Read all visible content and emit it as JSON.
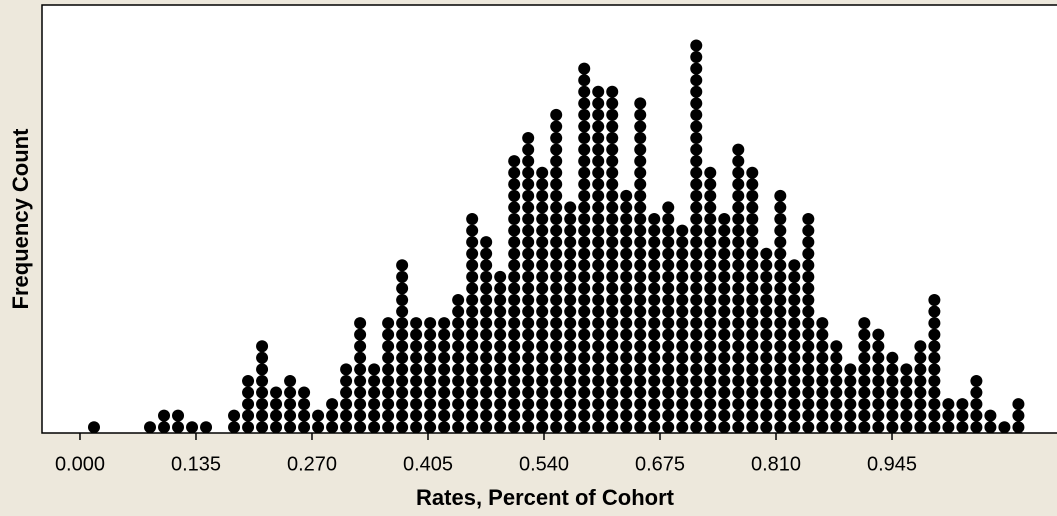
{
  "chart_data": {
    "type": "dotplot",
    "x_label": "Rates, Percent of Cohort",
    "y_label": "Frequency Count",
    "x": [
      0.0163,
      0.0326,
      0.0489,
      0.0652,
      0.0815,
      0.0978,
      0.1141,
      0.1304,
      0.1467,
      0.163,
      0.1793,
      0.1956,
      0.2119,
      0.2282,
      0.2445,
      0.2608,
      0.2771,
      0.2934,
      0.3097,
      0.326,
      0.3423,
      0.3586,
      0.3749,
      0.3912,
      0.4075,
      0.4238,
      0.4401,
      0.4564,
      0.4727,
      0.489,
      0.5053,
      0.5216,
      0.5379,
      0.5542,
      0.5705,
      0.5868,
      0.6031,
      0.6194,
      0.6357,
      0.652,
      0.6683,
      0.6846,
      0.7009,
      0.7172,
      0.7335,
      0.7498,
      0.7661,
      0.7824,
      0.7987,
      0.815,
      0.8313,
      0.8476,
      0.8639,
      0.8802,
      0.8965,
      0.9128,
      0.9291,
      0.9454,
      0.9617,
      0.978,
      0.9943,
      1.0106,
      1.0269,
      1.0432,
      1.0595,
      1.0758,
      1.0921
    ],
    "values": [
      1,
      0,
      0,
      0,
      1,
      2,
      2,
      1,
      1,
      0,
      2,
      5,
      8,
      4,
      5,
      4,
      2,
      3,
      6,
      10,
      6,
      10,
      15,
      10,
      10,
      10,
      12,
      19,
      17,
      14,
      24,
      26,
      23,
      28,
      20,
      32,
      30,
      30,
      21,
      29,
      19,
      20,
      18,
      34,
      23,
      19,
      25,
      23,
      16,
      21,
      15,
      19,
      10,
      8,
      6,
      10,
      9,
      7,
      6,
      8,
      12,
      3,
      3,
      5,
      2,
      1,
      3
    ],
    "color": "#000000",
    "xlim": [
      -0.0442,
      1.137
    ],
    "xticks": [
      {
        "value": 0,
        "label": "0.000"
      },
      0.135,
      {
        "value": 0.27,
        "label": "0.270"
      },
      0.405,
      {
        "value": 0.54,
        "label": "0.540"
      },
      0.675,
      {
        "value": 0.81,
        "label": "0.810"
      },
      0.945
    ],
    "ylim": [
      0,
      37
    ]
  }
}
